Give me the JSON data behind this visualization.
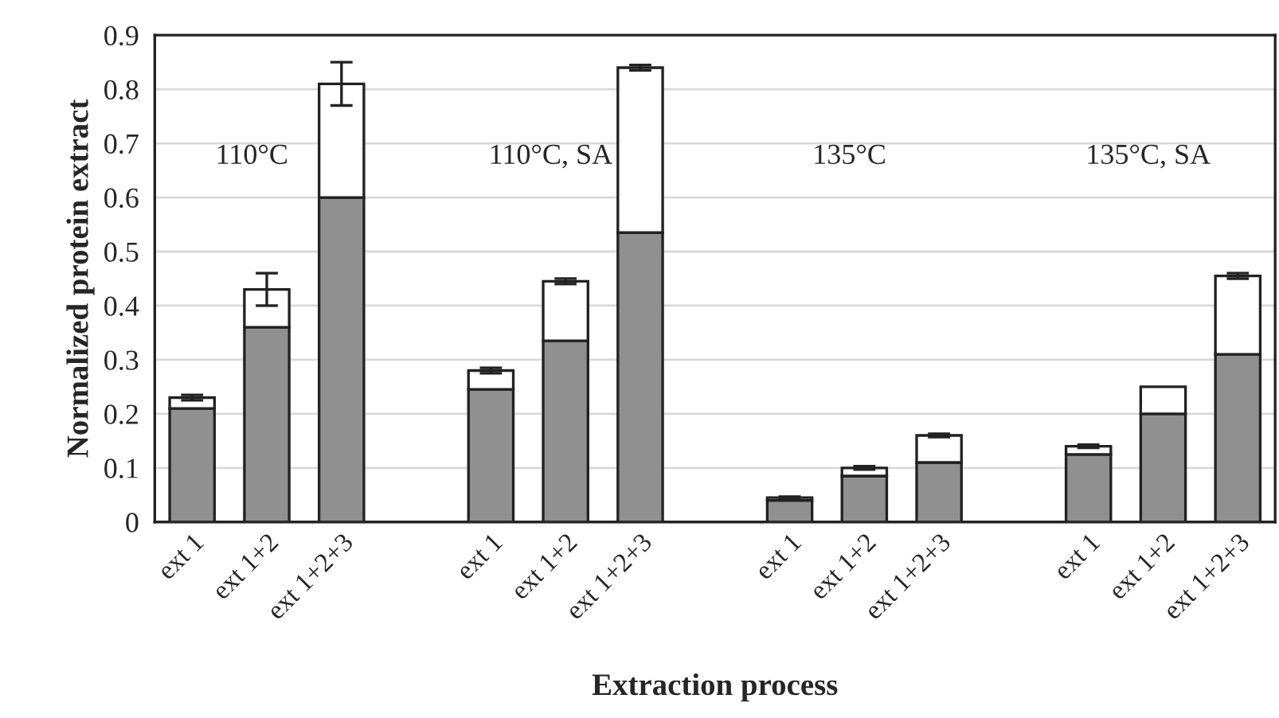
{
  "chart_data": {
    "type": "bar",
    "stacked": true,
    "xlabel": "Extraction process",
    "ylabel": "Normalized protein extract",
    "categories": [
      "ext 1",
      "ext 1+2",
      "ext 1+2+3",
      null,
      "ext 1",
      "ext 1+2",
      "ext 1+2+3",
      null,
      "ext 1",
      "ext 1+2",
      "ext 1+2+3",
      null,
      "ext 1",
      "ext 1+2",
      "ext 1+2+3"
    ],
    "series": [
      {
        "color": "#909090",
        "values": [
          0.21,
          0.36,
          0.6,
          null,
          0.245,
          0.335,
          0.535,
          null,
          0.04,
          0.085,
          0.11,
          null,
          0.125,
          0.2,
          0.31
        ]
      },
      {
        "color": "#ffffff",
        "values": [
          0.02,
          0.07,
          0.21,
          null,
          0.035,
          0.11,
          0.305,
          null,
          0.005,
          0.015,
          0.05,
          null,
          0.015,
          0.05,
          0.145
        ],
        "errors": [
          0.005,
          0.03,
          0.04,
          null,
          0.005,
          0.005,
          0.005,
          null,
          0.002,
          0.003,
          0.003,
          null,
          0.003,
          null,
          0.005
        ]
      }
    ],
    "annotations": [
      "110°C",
      "110°C, SA",
      "135°C",
      "135°C, SA"
    ],
    "ylim": [
      0,
      0.9
    ],
    "yticks": [
      0,
      0.1,
      0.2,
      0.3,
      0.4,
      0.5,
      0.6,
      0.7,
      0.8,
      0.9
    ],
    "grid": "y",
    "legend": false
  }
}
